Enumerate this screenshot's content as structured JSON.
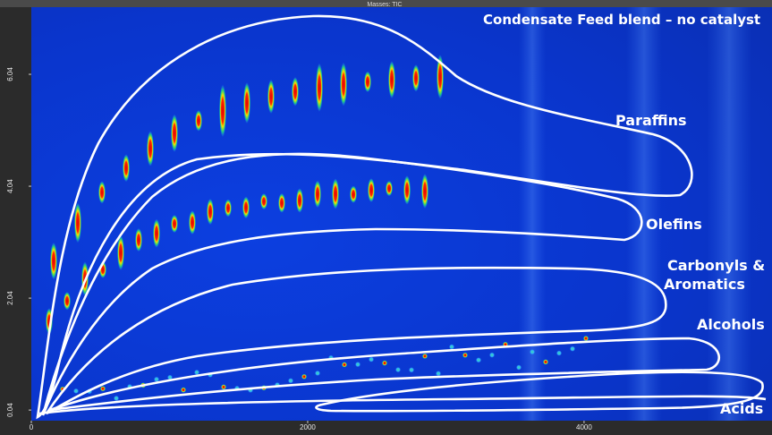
{
  "header": "Masses: TIC",
  "chart_data": {
    "type": "heatmap",
    "title": "Condensate Feed blend – no catalyst",
    "xlim": [
      0,
      5360
    ],
    "xticks": [
      0,
      2000,
      4000
    ],
    "ylim": [
      -0.15,
      7.24
    ],
    "yticks": [
      0.04,
      2.04,
      4.04,
      6.04
    ],
    "annotations": [
      "Paraffins",
      "Olefins",
      "Carbonyls &",
      "Aromatics",
      "Alcohols",
      "Acids"
    ]
  }
}
